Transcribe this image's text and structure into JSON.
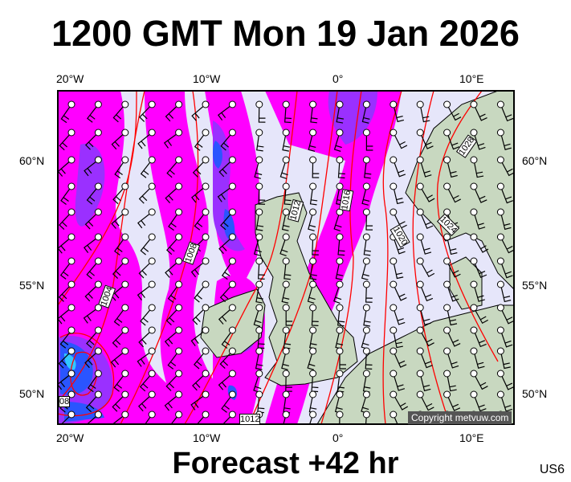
{
  "header": {
    "title": "1200 GMT Mon 19 Jan 2026"
  },
  "footer": {
    "forecast": "Forecast +42 hr",
    "region_code": "US6",
    "copyright": "Copyright metvuw.com"
  },
  "axes": {
    "longitude": [
      "20°W",
      "10°W",
      "0°",
      "10°E"
    ],
    "latitude": [
      "60°N",
      "55°N",
      "50°N"
    ]
  },
  "isobars": [
    "1004",
    "1008",
    "1012",
    "1016",
    "1020",
    "1024",
    "1028",
    "08",
    "1012"
  ],
  "colors": {
    "background": "#e6e6fa",
    "rain_light": "#ff00ff",
    "rain_mid": "#9a30ff",
    "rain_heavy": "#2a55ff",
    "rain_extreme": "#30c8ff",
    "land": "#c8d8c0",
    "isobar": "#ff0000",
    "wind_barb": "#000000"
  }
}
